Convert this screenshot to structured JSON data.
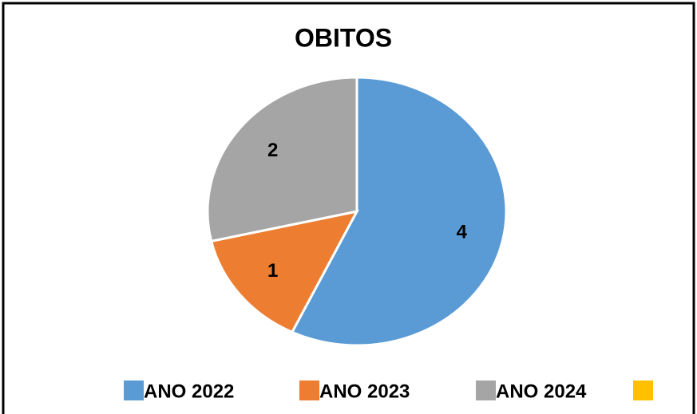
{
  "chart_data": {
    "type": "pie",
    "title": "OBITOS",
    "categories": [
      "ANO 2022",
      "ANO 2023",
      "ANO 2024",
      null
    ],
    "values": [
      4,
      1,
      2,
      0
    ],
    "colors": [
      "#5b9bd5",
      "#ed7d31",
      "#a5a5a5",
      "#ffc000"
    ],
    "legend": "bottom"
  }
}
